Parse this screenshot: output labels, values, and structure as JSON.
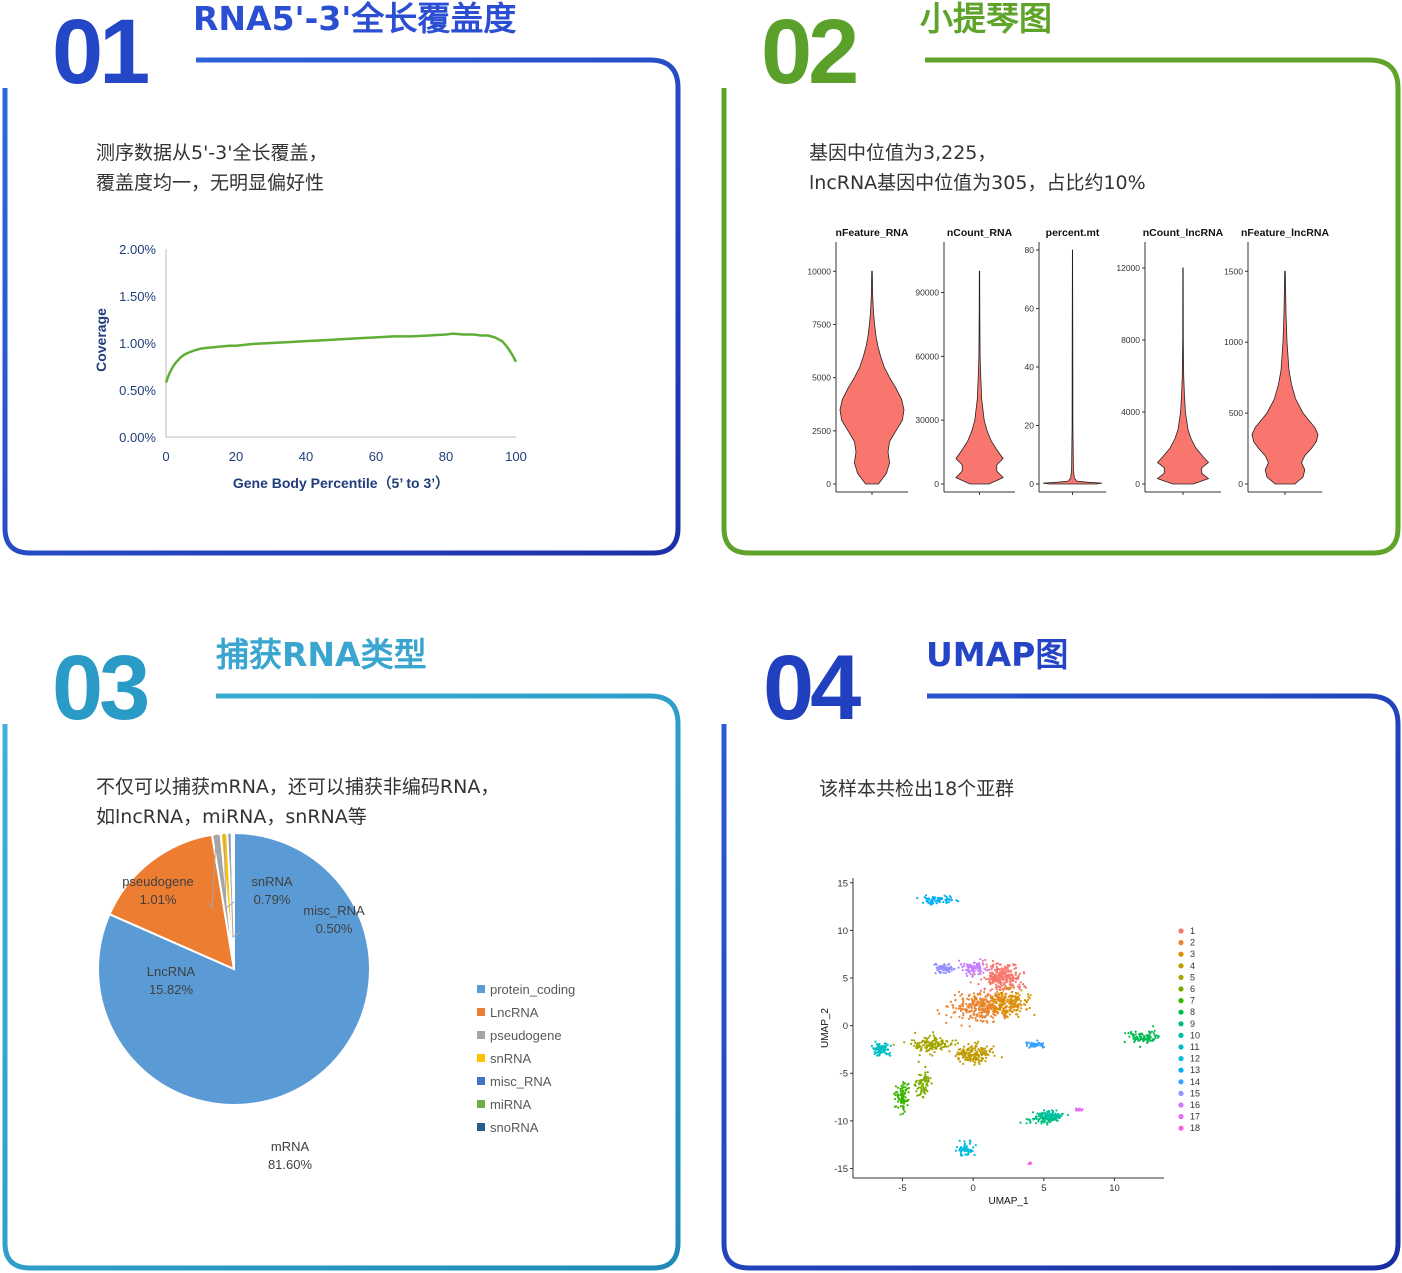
{
  "colors": {
    "panel1": "#2a4fd0",
    "panel2": "#5fa32a",
    "panel3": "#2e9fc9",
    "panel4": "#2341c2",
    "violin_fill": "#f8766d",
    "coverage_line": "#5fae35"
  },
  "panels": [
    {
      "number": "01",
      "title": "RNA5'-3'全长覆盖度",
      "desc": [
        "测序数据从5'-3'全长覆盖，",
        "覆盖度均一，无明显偏好性"
      ]
    },
    {
      "number": "02",
      "title": "小提琴图",
      "desc": [
        "基因中位值为3,225，",
        "lncRNA基因中位值为305，占比约10%"
      ]
    },
    {
      "number": "03",
      "title": "捕获RNA类型",
      "desc": [
        "不仅可以捕获mRNA，还可以捕获非编码RNA，",
        "如lncRNA，miRNA，snRNA等"
      ]
    },
    {
      "number": "04",
      "title": "UMAP图",
      "desc": [
        "该样本共检出18个亚群"
      ]
    }
  ],
  "chart_data": [
    {
      "type": "line",
      "title": "",
      "xlabel": "Gene Body Percentile（5’ to 3’）",
      "ylabel": "Coverage",
      "xlim": [
        0,
        100
      ],
      "ylim": [
        0,
        2.0
      ],
      "x_ticks": [
        "0",
        "20",
        "40",
        "60",
        "80",
        "100"
      ],
      "y_ticks": [
        "0.00%",
        "0.50%",
        "1.00%",
        "1.50%",
        "2.00%"
      ],
      "x": [
        0,
        1,
        2,
        3,
        4,
        5,
        6,
        8,
        10,
        12,
        15,
        18,
        20,
        25,
        30,
        35,
        40,
        45,
        50,
        55,
        60,
        65,
        70,
        75,
        80,
        82,
        85,
        88,
        90,
        92,
        94,
        96,
        97,
        98,
        99,
        100
      ],
      "values": [
        0.58,
        0.68,
        0.75,
        0.8,
        0.84,
        0.87,
        0.89,
        0.92,
        0.94,
        0.95,
        0.96,
        0.97,
        0.97,
        0.99,
        1.0,
        1.01,
        1.02,
        1.03,
        1.04,
        1.05,
        1.06,
        1.07,
        1.07,
        1.08,
        1.09,
        1.1,
        1.09,
        1.09,
        1.08,
        1.08,
        1.06,
        1.02,
        0.98,
        0.93,
        0.87,
        0.8
      ],
      "grid": false
    },
    {
      "type": "violin",
      "panels": [
        {
          "title": "nFeature_RNA",
          "ylim": [
            0,
            11000
          ],
          "ticks": [
            0,
            2500,
            5000,
            7500,
            10000
          ],
          "profile_y": [
            0,
            500,
            1000,
            1500,
            2000,
            2500,
            3000,
            3500,
            4000,
            4500,
            5000,
            5500,
            6000,
            6500,
            7000,
            7500,
            8000,
            8500,
            9000,
            10000
          ],
          "profile_w": [
            0.2,
            0.45,
            0.55,
            0.5,
            0.55,
            0.75,
            0.95,
            1.0,
            0.92,
            0.75,
            0.55,
            0.38,
            0.27,
            0.18,
            0.12,
            0.08,
            0.05,
            0.03,
            0.02,
            0.01
          ]
        },
        {
          "title": "nCount_RNA",
          "ylim": [
            0,
            110000
          ],
          "ticks": [
            0,
            30000,
            60000,
            90000
          ],
          "profile_y": [
            0,
            3000,
            6000,
            9000,
            12000,
            15000,
            20000,
            25000,
            30000,
            40000,
            50000,
            60000,
            80000,
            100000
          ],
          "profile_w": [
            0.3,
            0.75,
            0.55,
            0.55,
            0.75,
            0.6,
            0.38,
            0.24,
            0.15,
            0.07,
            0.04,
            0.02,
            0.01,
            0.005
          ]
        },
        {
          "title": "percent.mt",
          "ylim": [
            0,
            80
          ],
          "ticks": [
            0,
            20,
            40,
            60,
            80
          ],
          "profile_y": [
            0,
            0.3,
            0.6,
            1,
            2,
            5,
            20,
            50,
            80
          ],
          "profile_w": [
            0.8,
            1.0,
            0.5,
            0.15,
            0.06,
            0.03,
            0.015,
            0.01,
            0.005
          ]
        },
        {
          "title": "nCount_lncRNA",
          "ylim": [
            0,
            13000
          ],
          "ticks": [
            0,
            4000,
            8000,
            12000
          ],
          "profile_y": [
            0,
            300,
            600,
            900,
            1200,
            1500,
            2000,
            2500,
            3000,
            4000,
            5000,
            6000,
            8000,
            12000
          ],
          "profile_w": [
            0.3,
            0.75,
            0.55,
            0.55,
            0.75,
            0.6,
            0.38,
            0.24,
            0.15,
            0.07,
            0.04,
            0.02,
            0.01,
            0.005
          ]
        },
        {
          "title": "nFeature_lncRNA",
          "ylim": [
            0,
            1650
          ],
          "ticks": [
            0,
            500,
            1000,
            1500
          ],
          "profile_y": [
            0,
            50,
            100,
            150,
            200,
            250,
            300,
            350,
            400,
            450,
            500,
            600,
            700,
            800,
            1000,
            1200,
            1500
          ],
          "profile_w": [
            0.3,
            0.55,
            0.6,
            0.5,
            0.6,
            0.8,
            0.95,
            1.0,
            0.9,
            0.72,
            0.55,
            0.32,
            0.2,
            0.12,
            0.06,
            0.03,
            0.01
          ]
        }
      ]
    },
    {
      "type": "pie",
      "labels": [
        "protein_coding",
        "LncRNA",
        "pseudogene",
        "snRNA",
        "misc_RNA",
        "miRNA",
        "snoRNA"
      ],
      "slice_labels": [
        "mRNA",
        "LncRNA",
        "pseudogene",
        "snRNA",
        "misc_RNA",
        "miRNA",
        "snoRNA"
      ],
      "values": [
        81.6,
        15.82,
        1.01,
        0.79,
        0.5,
        0.2,
        0.08
      ],
      "value_labels": [
        "81.60%",
        "15.82%",
        "1.01%",
        "0.79%",
        "0.50%",
        "",
        ""
      ],
      "colors": [
        "#5b9bd5",
        "#ed7d31",
        "#a5a5a5",
        "#ffc000",
        "#4472c4",
        "#70ad47",
        "#255e91"
      ],
      "legend_position": "right"
    },
    {
      "type": "scatter",
      "xlabel": "UMAP_1",
      "ylabel": "UMAP_2",
      "xlim": [
        -8.5,
        13.5
      ],
      "ylim": [
        -16,
        15.5
      ],
      "x_ticks": [
        -5,
        0,
        5,
        10
      ],
      "y_ticks": [
        15,
        10,
        5,
        0,
        -5,
        -10,
        -15
      ],
      "legend": [
        "1",
        "2",
        "3",
        "4",
        "5",
        "6",
        "7",
        "8",
        "9",
        "10",
        "11",
        "12",
        "13",
        "14",
        "15",
        "16",
        "17",
        "18"
      ],
      "legend_colors": [
        "#f8766d",
        "#ea8331",
        "#d89000",
        "#c09b00",
        "#a3a500",
        "#7cae00",
        "#39b600",
        "#00bb4e",
        "#00bf7d",
        "#00c1a3",
        "#00bfc4",
        "#00bae0",
        "#00b0f6",
        "#35a2ff",
        "#9590ff",
        "#c77cff",
        "#e76bf3",
        "#fa62db"
      ],
      "clusters": [
        {
          "id": "1",
          "cx": 2.0,
          "cy": 5.0,
          "sx": 1.3,
          "sy": 1.3,
          "n": 260
        },
        {
          "id": "2",
          "cx": 0.5,
          "cy": 2.0,
          "sx": 1.8,
          "sy": 1.4,
          "n": 300
        },
        {
          "id": "3",
          "cx": 2.5,
          "cy": 2.5,
          "sx": 1.3,
          "sy": 1.2,
          "n": 180
        },
        {
          "id": "4",
          "cx": 0.0,
          "cy": -3.0,
          "sx": 1.4,
          "sy": 0.9,
          "n": 160
        },
        {
          "id": "5",
          "cx": -3.0,
          "cy": -2.0,
          "sx": 1.3,
          "sy": 0.8,
          "n": 140
        },
        {
          "id": "6",
          "cx": -3.5,
          "cy": -6.0,
          "sx": 0.5,
          "sy": 1.2,
          "n": 70
        },
        {
          "id": "7",
          "cx": -5.0,
          "cy": -7.5,
          "sx": 0.4,
          "sy": 1.3,
          "n": 90
        },
        {
          "id": "8",
          "cx": 12.0,
          "cy": -1.2,
          "sx": 1.0,
          "sy": 0.6,
          "n": 90
        },
        {
          "id": "9",
          "cx": 5.0,
          "cy": -9.8,
          "sx": 1.0,
          "sy": 0.6,
          "n": 100
        },
        {
          "id": "10",
          "cx": 5.5,
          "cy": -9.4,
          "sx": 0.7,
          "sy": 0.4,
          "n": 60
        },
        {
          "id": "11",
          "cx": -6.5,
          "cy": -2.5,
          "sx": 0.6,
          "sy": 0.6,
          "n": 80
        },
        {
          "id": "12",
          "cx": -0.5,
          "cy": -13.0,
          "sx": 0.5,
          "sy": 0.6,
          "n": 60
        },
        {
          "id": "13",
          "cx": -2.5,
          "cy": 13.2,
          "sx": 1.0,
          "sy": 0.35,
          "n": 70
        },
        {
          "id": "14",
          "cx": 4.5,
          "cy": -2.0,
          "sx": 0.8,
          "sy": 0.3,
          "n": 50
        },
        {
          "id": "15",
          "cx": -2.0,
          "cy": 6.0,
          "sx": 0.7,
          "sy": 0.6,
          "n": 70
        },
        {
          "id": "16",
          "cx": 0.0,
          "cy": 6.0,
          "sx": 0.9,
          "sy": 0.6,
          "n": 80
        },
        {
          "id": "17",
          "cx": 7.5,
          "cy": -8.8,
          "sx": 0.3,
          "sy": 0.15,
          "n": 18
        },
        {
          "id": "18",
          "cx": 4.0,
          "cy": -14.5,
          "sx": 0.1,
          "sy": 0.1,
          "n": 5
        }
      ]
    }
  ]
}
